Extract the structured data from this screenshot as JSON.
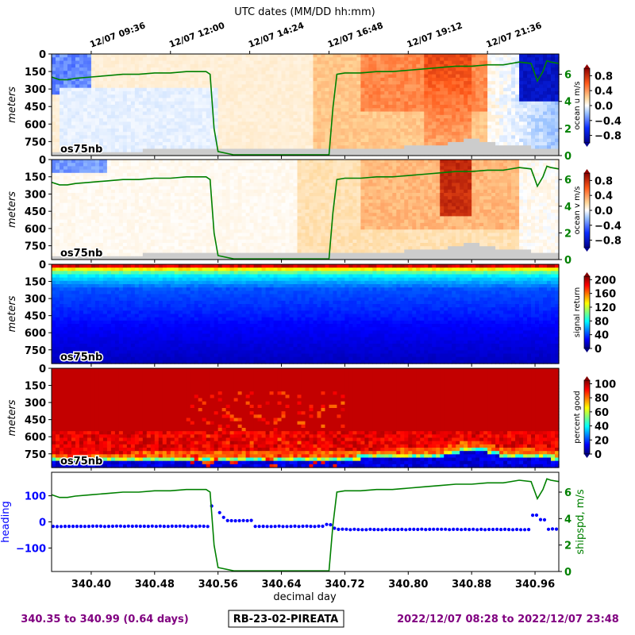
{
  "top_axis": {
    "title": "UTC dates (MM/DD hh:mm)",
    "tick_labels": [
      "12/07 09:36",
      "12/07 12:00",
      "12/07 14:24",
      "12/07 16:48",
      "12/07 19:12",
      "12/07 21:36"
    ],
    "tick_values": [
      340.4,
      340.5,
      340.6,
      340.7,
      340.8,
      340.9
    ]
  },
  "x_axis": {
    "label": "decimal day",
    "range": [
      340.35,
      340.99
    ],
    "ticks": [
      340.4,
      340.48,
      340.56,
      340.64,
      340.72,
      340.8,
      340.88,
      340.96
    ],
    "tick_labels": [
      "340.40",
      "340.48",
      "340.56",
      "340.64",
      "340.72",
      "340.80",
      "340.88",
      "340.96"
    ]
  },
  "depth_axis": {
    "label": "meters",
    "range": [
      0,
      870
    ],
    "ticks": [
      0,
      150,
      300,
      450,
      600,
      750
    ],
    "tick_labels": [
      "0",
      "150",
      "300",
      "450",
      "600",
      "750"
    ]
  },
  "instrument_label": "os75nb",
  "shipspd_axis": {
    "range": [
      0,
      7.5
    ],
    "ticks": [
      0,
      2,
      4,
      6
    ],
    "tick_labels": [
      "0",
      "2",
      "4",
      "6"
    ],
    "color": "#008000"
  },
  "panels": [
    {
      "id": "u",
      "colorbar_label": "ocean u m/s",
      "colormap": "bwr",
      "cbar_range": [
        -1,
        1
      ],
      "cbar_ticks": [
        0.8,
        0.4,
        0.0,
        -0.4,
        -0.8
      ],
      "cbar_tick_labels": [
        "0.8",
        "0.4",
        "0.0",
        "−0.4",
        "−0.8"
      ]
    },
    {
      "id": "v",
      "colorbar_label": "ocean v m/s",
      "colormap": "bwr",
      "cbar_range": [
        -1,
        1
      ],
      "cbar_ticks": [
        0.8,
        0.4,
        0.0,
        -0.4,
        -0.8
      ],
      "cbar_tick_labels": [
        "0.8",
        "0.4",
        "0.0",
        "−0.4",
        "−0.8"
      ]
    },
    {
      "id": "amp",
      "colorbar_label": "signal return",
      "colormap": "jet",
      "cbar_range": [
        0,
        210
      ],
      "cbar_ticks": [
        200,
        160,
        120,
        80,
        40,
        0
      ],
      "cbar_tick_labels": [
        "200",
        "160",
        "120",
        "80",
        "40",
        "0"
      ]
    },
    {
      "id": "pg",
      "colorbar_label": "percent good",
      "colormap": "jet",
      "cbar_range": [
        0,
        105
      ],
      "cbar_ticks": [
        100,
        80,
        60,
        40,
        20,
        0
      ],
      "cbar_tick_labels": [
        "100",
        "80",
        "60",
        "40",
        "20",
        "0"
      ]
    }
  ],
  "bottom_panel": {
    "heading_label": "heading",
    "heading_color": "#0000ff",
    "heading_range": [
      -190,
      190
    ],
    "heading_ticks": [
      100,
      0,
      -100
    ],
    "heading_tick_labels": [
      "100",
      "0",
      "−100"
    ],
    "shipspd_label": "shipspd, m/s"
  },
  "chart_data": {
    "type": "heatmap",
    "note_series": "shipspd (m/s) vs decimal day; heading (deg) vs decimal day",
    "shipspd": {
      "x": [
        340.35,
        340.36,
        340.37,
        340.38,
        340.4,
        340.42,
        340.44,
        340.46,
        340.48,
        340.5,
        340.52,
        340.535,
        340.545,
        340.55,
        340.555,
        340.56,
        340.58,
        340.6,
        340.62,
        340.64,
        340.66,
        340.68,
        340.69,
        340.7,
        340.705,
        340.71,
        340.72,
        340.74,
        340.76,
        340.78,
        340.8,
        340.82,
        340.84,
        340.86,
        340.88,
        340.9,
        340.92,
        340.94,
        340.955,
        340.96,
        340.963,
        340.97,
        340.975,
        340.98,
        340.99
      ],
      "y": [
        5.8,
        5.6,
        5.6,
        5.7,
        5.8,
        5.9,
        6.0,
        6.0,
        6.1,
        6.1,
        6.2,
        6.2,
        6.2,
        6.0,
        2.0,
        0.3,
        0.05,
        0.05,
        0.05,
        0.05,
        0.05,
        0.05,
        0.05,
        0.05,
        3.5,
        6.0,
        6.1,
        6.1,
        6.2,
        6.2,
        6.3,
        6.4,
        6.5,
        6.6,
        6.6,
        6.7,
        6.7,
        6.9,
        6.8,
        6.0,
        5.5,
        6.2,
        7.0,
        6.9,
        6.8
      ]
    },
    "heading": {
      "x_start": 340.352,
      "x_end": 340.99,
      "step": 0.005,
      "segments": [
        {
          "from": 340.35,
          "to": 340.548,
          "value": -17
        },
        {
          "from": 340.549,
          "to": 340.556,
          "value": 60
        },
        {
          "from": 340.557,
          "to": 340.562,
          "value": 35
        },
        {
          "from": 340.563,
          "to": 340.568,
          "value": 18
        },
        {
          "from": 340.569,
          "to": 340.605,
          "value": 5
        },
        {
          "from": 340.606,
          "to": 340.695,
          "value": -17
        },
        {
          "from": 340.696,
          "to": 340.702,
          "value": -10
        },
        {
          "from": 340.703,
          "to": 340.708,
          "value": -25
        },
        {
          "from": 340.709,
          "to": 340.955,
          "value": -29
        },
        {
          "from": 340.956,
          "to": 340.963,
          "value": 25
        },
        {
          "from": 340.964,
          "to": 340.972,
          "value": 8
        },
        {
          "from": 340.973,
          "to": 340.99,
          "value": -28
        }
      ]
    },
    "bottom_depth_m": {
      "x": [
        340.35,
        340.45,
        340.5,
        340.55,
        340.6,
        340.7,
        340.78,
        340.84,
        340.88,
        340.92,
        340.96,
        340.99
      ],
      "y": [
        830,
        830,
        820,
        820,
        815,
        815,
        800,
        790,
        720,
        785,
        800,
        810
      ]
    }
  },
  "footer": {
    "left": "340.35 to 340.99 (0.64 days)",
    "center": "RB-23-02-PIREATA",
    "right": "2022/12/07 08:28 to 2022/12/07 23:48",
    "left_color": "#800080",
    "right_color": "#800080"
  }
}
